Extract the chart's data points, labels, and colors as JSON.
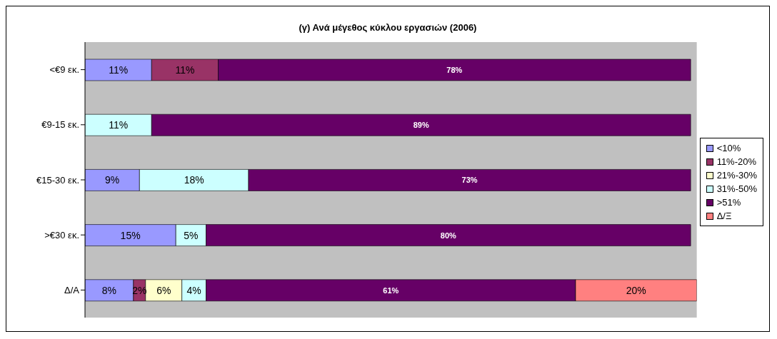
{
  "chart_data": {
    "type": "bar",
    "orientation": "horizontal",
    "stacked": true,
    "title": "(γ) Ανά μέγεθος κύκλου εργασιών (2006)",
    "categories": [
      "<€9 εκ.",
      "€9-15 εκ.",
      "€15-30 εκ.",
      ">€30 εκ.",
      "Δ/Α"
    ],
    "legend": "right",
    "grid": false,
    "series": [
      {
        "name": "<10%",
        "color": "#9999ff",
        "values": [
          11,
          null,
          9,
          15,
          8
        ],
        "value_labels": [
          "11%",
          null,
          "9%",
          "15%",
          "8%"
        ]
      },
      {
        "name": "11%-20%",
        "color": "#993366",
        "values": [
          11,
          null,
          null,
          null,
          2
        ],
        "value_labels": [
          "11%",
          null,
          null,
          null,
          "2%"
        ]
      },
      {
        "name": "21%-30%",
        "color": "#ffffcc",
        "values": [
          null,
          null,
          null,
          null,
          6
        ],
        "value_labels": [
          null,
          null,
          null,
          null,
          "6%"
        ]
      },
      {
        "name": "31%-50%",
        "color": "#ccffff",
        "values": [
          null,
          11,
          18,
          5,
          4
        ],
        "value_labels": [
          null,
          "11%",
          "18%",
          "5%",
          "4%"
        ]
      },
      {
        "name": ">51%",
        "color": "#660066",
        "values": [
          78,
          89,
          73,
          80,
          61
        ],
        "value_labels": [
          "78%",
          "89%",
          "73%",
          "80%",
          "61%"
        ]
      },
      {
        "name": "Δ/Ξ",
        "color": "#ff8080",
        "values": [
          null,
          null,
          null,
          null,
          20
        ],
        "value_labels": [
          null,
          null,
          null,
          null,
          "20%"
        ]
      }
    ]
  }
}
